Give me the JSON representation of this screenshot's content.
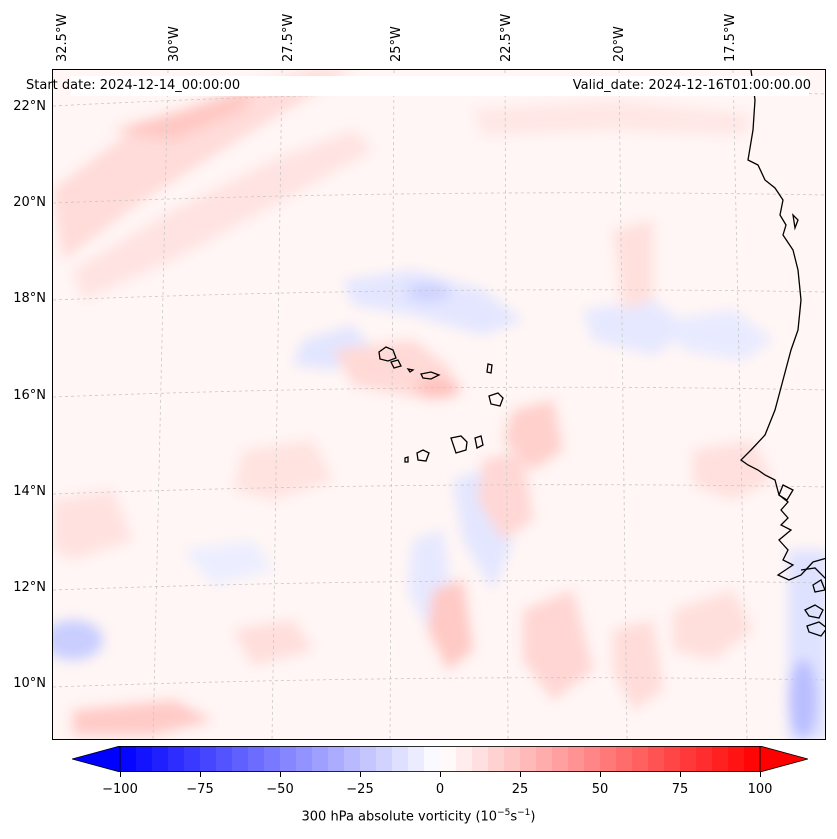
{
  "map": {
    "start_label": "Start date: 2024-12-14_00:00:00",
    "valid_label": "Valid_date: 2024-12-16T01:00:00.00",
    "lon_labels": [
      "32.5°W",
      "30°W",
      "27.5°W",
      "25°W",
      "22.5°W",
      "20°W",
      "17.5°W"
    ],
    "lat_labels": [
      "22°N",
      "20°N",
      "18°N",
      "16°N",
      "14°N",
      "12°N",
      "10°N"
    ],
    "field": "300 hPa absolute vorticity",
    "colormap": "bwr",
    "colors": {
      "negative": "#0000ff",
      "neutral": "#ffffff",
      "positive": "#ff0000",
      "coastline": "#000000",
      "grid": "#c8c8c8"
    }
  },
  "colorbar": {
    "label": "300 hPa absolute vorticity (10",
    "label_exp1": "−5",
    "label_mid": "s",
    "label_exp2": "−1",
    "label_end": ")",
    "ticks": [
      "−100",
      "−75",
      "−50",
      "−25",
      "0",
      "25",
      "50",
      "75",
      "100"
    ],
    "range": [
      -100,
      100
    ],
    "extend": "both"
  }
}
